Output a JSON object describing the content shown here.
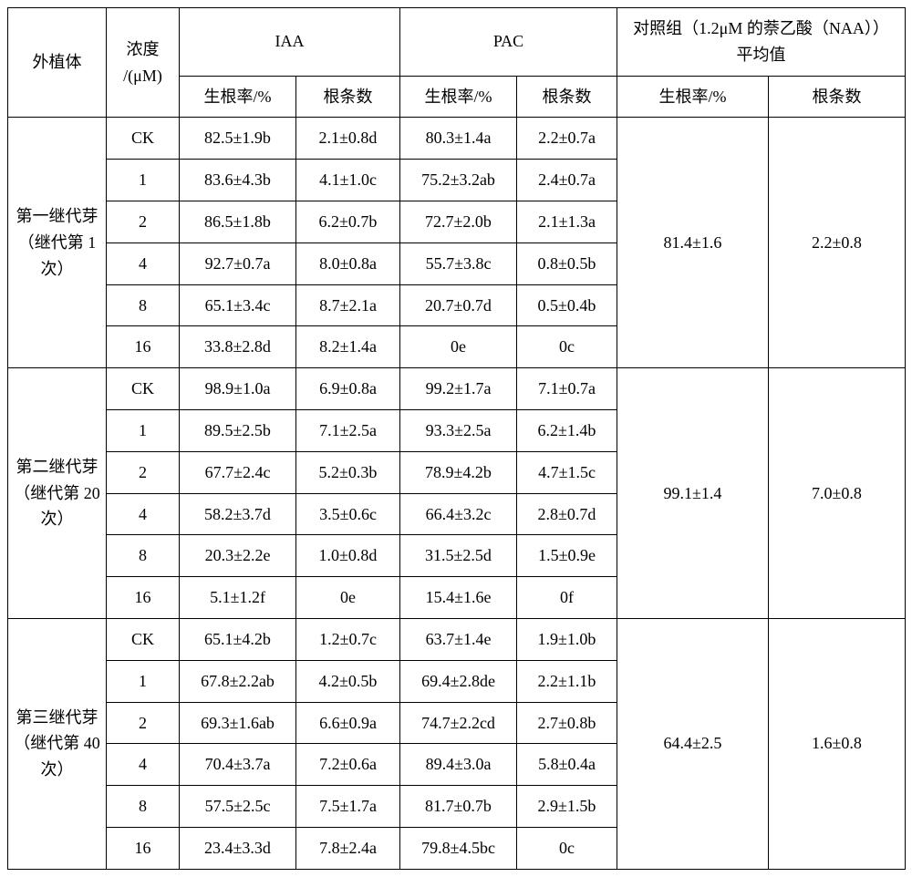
{
  "bg": "#ffffff",
  "border_color": "#000000",
  "headers": {
    "explant": "外植体",
    "conc_top": "浓度",
    "conc_bot": "/(μM)",
    "iaa": "IAA",
    "pac": "PAC",
    "control_top": "对照组（1.2μM 的萘乙酸（NAA））",
    "control_bot": "平均值",
    "root_rate": "生根率/%",
    "root_num": "根条数"
  },
  "groups": [
    {
      "name_l1": "第一继代芽",
      "name_l2": "（继代第 1",
      "name_l3": "次）",
      "ctrl_rate": "81.4±1.6",
      "ctrl_num": "2.2±0.8",
      "rows": [
        {
          "conc": "CK",
          "iaa_rate": "82.5±1.9b",
          "iaa_num": "2.1±0.8d",
          "pac_rate": "80.3±1.4a",
          "pac_num": "2.2±0.7a"
        },
        {
          "conc": "1",
          "iaa_rate": "83.6±4.3b",
          "iaa_num": "4.1±1.0c",
          "pac_rate": "75.2±3.2ab",
          "pac_num": "2.4±0.7a"
        },
        {
          "conc": "2",
          "iaa_rate": "86.5±1.8b",
          "iaa_num": "6.2±0.7b",
          "pac_rate": "72.7±2.0b",
          "pac_num": "2.1±1.3a"
        },
        {
          "conc": "4",
          "iaa_rate": "92.7±0.7a",
          "iaa_num": "8.0±0.8a",
          "pac_rate": "55.7±3.8c",
          "pac_num": "0.8±0.5b"
        },
        {
          "conc": "8",
          "iaa_rate": "65.1±3.4c",
          "iaa_num": "8.7±2.1a",
          "pac_rate": "20.7±0.7d",
          "pac_num": "0.5±0.4b"
        },
        {
          "conc": "16",
          "iaa_rate": "33.8±2.8d",
          "iaa_num": "8.2±1.4a",
          "pac_rate": "0e",
          "pac_num": "0c"
        }
      ]
    },
    {
      "name_l1": "第二继代芽",
      "name_l2": "（继代第 20",
      "name_l3": "次）",
      "ctrl_rate": "99.1±1.4",
      "ctrl_num": "7.0±0.8",
      "rows": [
        {
          "conc": "CK",
          "iaa_rate": "98.9±1.0a",
          "iaa_num": "6.9±0.8a",
          "pac_rate": "99.2±1.7a",
          "pac_num": "7.1±0.7a"
        },
        {
          "conc": "1",
          "iaa_rate": "89.5±2.5b",
          "iaa_num": "7.1±2.5a",
          "pac_rate": "93.3±2.5a",
          "pac_num": "6.2±1.4b"
        },
        {
          "conc": "2",
          "iaa_rate": "67.7±2.4c",
          "iaa_num": "5.2±0.3b",
          "pac_rate": "78.9±4.2b",
          "pac_num": "4.7±1.5c"
        },
        {
          "conc": "4",
          "iaa_rate": "58.2±3.7d",
          "iaa_num": "3.5±0.6c",
          "pac_rate": "66.4±3.2c",
          "pac_num": "2.8±0.7d"
        },
        {
          "conc": "8",
          "iaa_rate": "20.3±2.2e",
          "iaa_num": "1.0±0.8d",
          "pac_rate": "31.5±2.5d",
          "pac_num": "1.5±0.9e"
        },
        {
          "conc": "16",
          "iaa_rate": "5.1±1.2f",
          "iaa_num": "0e",
          "pac_rate": "15.4±1.6e",
          "pac_num": "0f"
        }
      ]
    },
    {
      "name_l1": "第三继代芽",
      "name_l2": "（继代第 40",
      "name_l3": "次）",
      "ctrl_rate": "64.4±2.5",
      "ctrl_num": "1.6±0.8",
      "rows": [
        {
          "conc": "CK",
          "iaa_rate": "65.1±4.2b",
          "iaa_num": "1.2±0.7c",
          "pac_rate": "63.7±1.4e",
          "pac_num": "1.9±1.0b"
        },
        {
          "conc": "1",
          "iaa_rate": "67.8±2.2ab",
          "iaa_num": "4.2±0.5b",
          "pac_rate": "69.4±2.8de",
          "pac_num": "2.2±1.1b"
        },
        {
          "conc": "2",
          "iaa_rate": "69.3±1.6ab",
          "iaa_num": "6.6±0.9a",
          "pac_rate": "74.7±2.2cd",
          "pac_num": "2.7±0.8b"
        },
        {
          "conc": "4",
          "iaa_rate": "70.4±3.7a",
          "iaa_num": "7.2±0.6a",
          "pac_rate": "89.4±3.0a",
          "pac_num": "5.8±0.4a"
        },
        {
          "conc": "8",
          "iaa_rate": "57.5±2.5c",
          "iaa_num": "7.5±1.7a",
          "pac_rate": "81.7±0.7b",
          "pac_num": "2.9±1.5b"
        },
        {
          "conc": "16",
          "iaa_rate": "23.4±3.3d",
          "iaa_num": "7.8±2.4a",
          "pac_rate": "79.8±4.5bc",
          "pac_num": "0c"
        }
      ]
    }
  ]
}
